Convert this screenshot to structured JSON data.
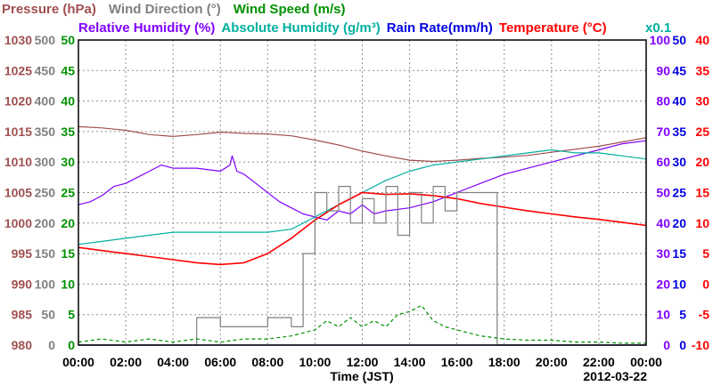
{
  "chart_data": {
    "type": "line",
    "header_row1": [
      {
        "text": "Pressure (hPa)",
        "color": "#a05050"
      },
      {
        "text": "Wind Direction (°)",
        "color": "#808080"
      },
      {
        "text": "Wind Speed (m/s)",
        "color": "#009000"
      }
    ],
    "header_row2": [
      {
        "text": "Relative Humidity (%)",
        "color": "#8000ff"
      },
      {
        "text": "Absolute Humidity (g/m³)",
        "color": "#00b0a0"
      },
      {
        "text": "Rain Rate(mm/h)",
        "color": "#0000e0"
      },
      {
        "text": "Temperature (°C)",
        "color": "#ff0000"
      }
    ],
    "abs_humidity_scale_note": "x0.1",
    "xlabel": "Time (JST)",
    "date": "2012-03-22",
    "x_ticks": [
      "00:00",
      "02:00",
      "04:00",
      "06:00",
      "08:00",
      "10:00",
      "12:00",
      "14:00",
      "16:00",
      "18:00",
      "20:00",
      "22:00",
      "00:00"
    ],
    "xlim_hours": [
      0,
      24
    ],
    "grid": true,
    "axes": {
      "pressure": {
        "label": "Pressure (hPa)",
        "color": "#a05050",
        "ticks": [
          "980",
          "985",
          "990",
          "995",
          "1000",
          "1005",
          "1010",
          "1015",
          "1020",
          "1025",
          "1030"
        ],
        "ylim": [
          980,
          1030
        ]
      },
      "wind_direction": {
        "label": "Wind Direction (°)",
        "color": "#808080",
        "ticks": [
          "0",
          "50",
          "100",
          "150",
          "200",
          "250",
          "300",
          "350",
          "400",
          "450",
          "500"
        ],
        "ylim": [
          0,
          500
        ]
      },
      "wind_speed": {
        "label": "Wind Speed (m/s)",
        "color": "#009000",
        "ticks": [
          "0",
          "5",
          "10",
          "15",
          "20",
          "25",
          "30",
          "35",
          "40",
          "45",
          "50"
        ],
        "ylim": [
          0,
          50
        ]
      },
      "humidity": {
        "label": "Relative Humidity (%)",
        "color": "#8000ff",
        "ticks": [
          "0",
          "10",
          "20",
          "30",
          "40",
          "50",
          "60",
          "70",
          "80",
          "90",
          "100"
        ],
        "ylim": [
          0,
          100
        ]
      },
      "rain_rate": {
        "label": "Rain Rate(mm/h)",
        "color": "#0000e0",
        "ticks": [
          "0",
          "5",
          "10",
          "15",
          "20",
          "25",
          "30",
          "35",
          "40",
          "45",
          "50"
        ],
        "ylim": [
          0,
          50
        ]
      },
      "temperature": {
        "label": "Temperature (°C)",
        "color": "#ff0000",
        "ticks": [
          "-10",
          "-5",
          "0",
          "5",
          "10",
          "15",
          "20",
          "25",
          "30",
          "35",
          "40"
        ],
        "ylim": [
          -10,
          40
        ]
      }
    },
    "series": [
      {
        "name": "Pressure (hPa)",
        "axis": "pressure",
        "color": "#a05050",
        "x": [
          0,
          1,
          2,
          3,
          4,
          5,
          6,
          7,
          8,
          9,
          10,
          11,
          12,
          13,
          14,
          15,
          16,
          17,
          18,
          19,
          20,
          21,
          22,
          23,
          24
        ],
        "y": [
          1015.8,
          1015.6,
          1015.2,
          1014.5,
          1014.2,
          1014.5,
          1014.9,
          1014.7,
          1014.6,
          1014.3,
          1013.6,
          1012.8,
          1011.8,
          1011,
          1010.3,
          1010.1,
          1010.3,
          1010.6,
          1010.8,
          1011.1,
          1011.6,
          1012.1,
          1012.6,
          1013.3,
          1014
        ]
      },
      {
        "name": "Relative Humidity (%)",
        "axis": "humidity",
        "color": "#8000ff",
        "x": [
          0,
          0.5,
          1,
          1.5,
          2,
          2.5,
          3,
          3.5,
          4,
          5,
          6,
          6.4,
          6.5,
          6.7,
          7,
          7.5,
          8,
          8.5,
          9,
          9.5,
          10,
          10.5,
          11,
          11.5,
          12,
          12.5,
          13,
          14,
          15,
          16,
          17,
          18,
          19,
          20,
          21,
          22,
          23,
          24
        ],
        "y": [
          46,
          47,
          49,
          52,
          53,
          55,
          57,
          59,
          58,
          58,
          57,
          59,
          62,
          57,
          56,
          53,
          50,
          47,
          45,
          43,
          42,
          41,
          44,
          43,
          46,
          43,
          44,
          45,
          47,
          50,
          53,
          56,
          58,
          60,
          62,
          64,
          66,
          67
        ]
      },
      {
        "name": "Absolute Humidity (g/m³)",
        "axis": "humidity",
        "color": "#00b0a0",
        "x": [
          0,
          1,
          2,
          3,
          4,
          5,
          6,
          7,
          8,
          9,
          10,
          11,
          12,
          13,
          14,
          15,
          16,
          17,
          18,
          19,
          20,
          21,
          22,
          23,
          24
        ],
        "y": [
          33,
          34,
          35,
          36,
          37,
          37,
          37,
          37,
          37,
          38,
          42,
          46,
          50,
          54,
          57,
          59,
          60,
          61,
          62,
          63,
          64,
          63,
          63,
          62,
          61
        ]
      },
      {
        "name": "Temperature (°C)",
        "axis": "temperature",
        "color": "#ff0000",
        "x": [
          0,
          1,
          2,
          3,
          4,
          5,
          6,
          7,
          8,
          9,
          10,
          11,
          12,
          13,
          14,
          15,
          16,
          17,
          18,
          19,
          20,
          21,
          22,
          23,
          24
        ],
        "y": [
          6,
          5.5,
          5,
          4.5,
          4,
          3.5,
          3.2,
          3.5,
          5,
          7.5,
          10.5,
          13,
          15,
          14.7,
          14.8,
          14.5,
          14,
          13.2,
          12.6,
          12,
          11.5,
          11,
          10.6,
          10.1,
          9.6
        ]
      },
      {
        "name": "Wind Direction (°)",
        "axis": "wind_direction",
        "color": "#808080",
        "style": "step",
        "x": [
          0,
          5,
          5,
          6,
          6,
          8,
          8,
          9,
          9,
          9.5,
          9.5,
          10,
          10,
          10.5,
          10.5,
          11,
          11,
          11.5,
          11.5,
          12,
          12,
          12.5,
          12.5,
          13,
          13,
          13.5,
          13.5,
          14,
          14,
          14.5,
          14.5,
          15,
          15,
          15.5,
          15.5,
          16,
          16,
          16.5,
          16.5,
          17,
          17,
          17.7,
          17.7,
          24
        ],
        "y": [
          0,
          0,
          45,
          45,
          30,
          30,
          45,
          45,
          30,
          30,
          150,
          150,
          250,
          250,
          220,
          220,
          260,
          260,
          200,
          200,
          240,
          240,
          200,
          200,
          260,
          260,
          180,
          180,
          250,
          250,
          200,
          200,
          260,
          260,
          220,
          220,
          250,
          250,
          250,
          250,
          250,
          250,
          0,
          0
        ]
      },
      {
        "name": "Wind Speed (m/s)",
        "axis": "wind_speed",
        "color": "#009000",
        "style": "dashed",
        "x": [
          0,
          1,
          2,
          3,
          4,
          5,
          6,
          7,
          8,
          9,
          10,
          10.5,
          11,
          11.5,
          12,
          12.5,
          13,
          13.5,
          14,
          14.5,
          15,
          15.5,
          16,
          16.5,
          17,
          18,
          19,
          20,
          21,
          22,
          23,
          24
        ],
        "y": [
          0.5,
          1,
          0.5,
          1,
          0.5,
          1,
          0.5,
          1,
          1,
          1.5,
          2.5,
          4,
          3,
          4.5,
          3,
          4,
          3,
          5,
          5.5,
          6.5,
          4,
          3,
          2.5,
          2,
          1.5,
          1,
          0.8,
          0.8,
          0.5,
          0.5,
          0.3,
          0.3
        ]
      },
      {
        "name": "Rain Rate(mm/h)",
        "axis": "rain_rate",
        "color": "#0000e0",
        "x": [
          0,
          24
        ],
        "y": [
          0,
          0
        ]
      }
    ]
  }
}
